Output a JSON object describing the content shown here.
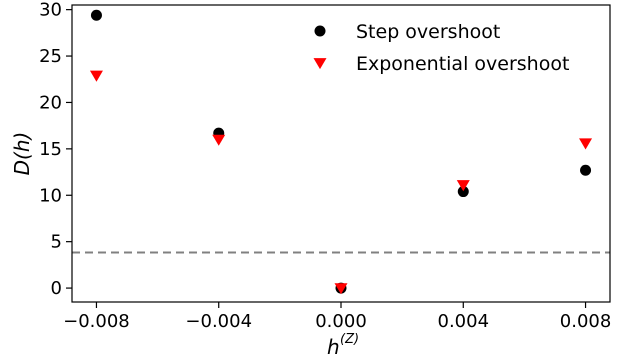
{
  "chart_data": {
    "type": "scatter",
    "title": "",
    "xlabel": "h",
    "xlabel_superscript": "(Z)",
    "ylabel": "D(h)",
    "xlim": [
      -0.0088,
      0.0088
    ],
    "ylim": [
      -1.5,
      30.5
    ],
    "x_ticks": [
      -0.008,
      -0.004,
      0.0,
      0.004,
      0.008
    ],
    "x_tick_labels": [
      "−0.008",
      "−0.004",
      "0.000",
      "0.004",
      "0.008"
    ],
    "y_ticks": [
      0,
      5,
      10,
      15,
      20,
      25,
      30
    ],
    "y_tick_labels": [
      "0",
      "5",
      "10",
      "15",
      "20",
      "25",
      "30"
    ],
    "grid": false,
    "legend_position": "top-right",
    "reference_line": {
      "y": 3.84,
      "style": "dashed",
      "color": "#808080"
    },
    "series": [
      {
        "name": "Step overshoot",
        "marker": "circle",
        "color": "#000000",
        "x": [
          -0.008,
          -0.004,
          0.0,
          0.004,
          0.008
        ],
        "y": [
          29.4,
          16.7,
          0.0,
          10.4,
          12.7
        ]
      },
      {
        "name": "Exponential overshoot",
        "marker": "triangle-down",
        "color": "#ff0000",
        "x": [
          -0.008,
          -0.004,
          0.0,
          0.004,
          0.008
        ],
        "y": [
          22.9,
          16.0,
          0.0,
          11.1,
          15.6
        ]
      }
    ]
  }
}
